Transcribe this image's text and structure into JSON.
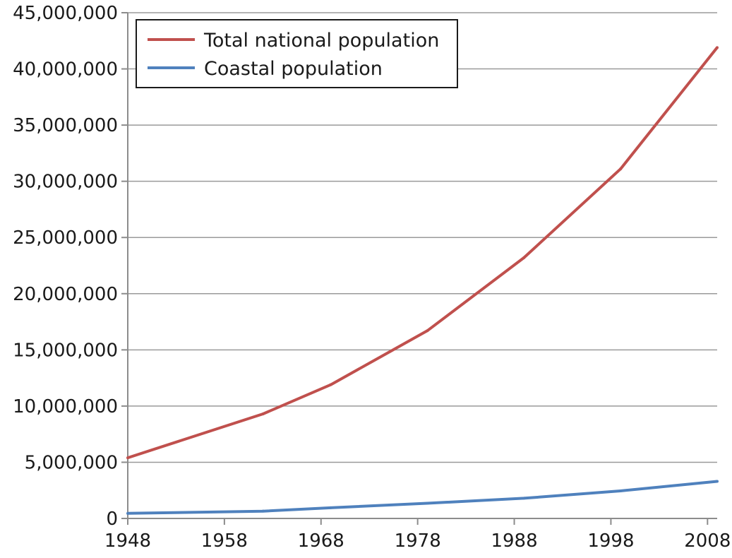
{
  "chart_data": {
    "type": "line",
    "title": "",
    "xlabel": "",
    "ylabel": "",
    "xlim": [
      1948,
      2009
    ],
    "ylim": [
      0,
      45000000
    ],
    "grid": true,
    "legend_position": "top-left",
    "x_ticks": [
      {
        "value": 1948,
        "label": "1948"
      },
      {
        "value": 1958,
        "label": "1958"
      },
      {
        "value": 1968,
        "label": "1968"
      },
      {
        "value": 1978,
        "label": "1978"
      },
      {
        "value": 1988,
        "label": "1988"
      },
      {
        "value": 1998,
        "label": "1998"
      },
      {
        "value": 2008,
        "label": "2008"
      }
    ],
    "y_ticks": [
      {
        "value": 0,
        "label": "0"
      },
      {
        "value": 5000000,
        "label": "5,000,000"
      },
      {
        "value": 10000000,
        "label": "10,000,000"
      },
      {
        "value": 15000000,
        "label": "15,000,000"
      },
      {
        "value": 20000000,
        "label": "20,000,000"
      },
      {
        "value": 25000000,
        "label": "25,000,000"
      },
      {
        "value": 30000000,
        "label": "30,000,000"
      },
      {
        "value": 35000000,
        "label": "35,000,000"
      },
      {
        "value": 40000000,
        "label": "40,000,000"
      },
      {
        "value": 45000000,
        "label": "45,000,000"
      }
    ],
    "series": [
      {
        "name": "Total national population",
        "color": "#c0504d",
        "points": [
          {
            "x": 1948,
            "y": 5400000
          },
          {
            "x": 1962,
            "y": 9300000
          },
          {
            "x": 1969,
            "y": 11900000
          },
          {
            "x": 1979,
            "y": 16700000
          },
          {
            "x": 1989,
            "y": 23200000
          },
          {
            "x": 1999,
            "y": 31100000
          },
          {
            "x": 2009,
            "y": 41900000
          }
        ]
      },
      {
        "name": "Coastal population",
        "color": "#4f81bd",
        "points": [
          {
            "x": 1948,
            "y": 450000
          },
          {
            "x": 1962,
            "y": 650000
          },
          {
            "x": 1969,
            "y": 950000
          },
          {
            "x": 1979,
            "y": 1350000
          },
          {
            "x": 1989,
            "y": 1800000
          },
          {
            "x": 1999,
            "y": 2450000
          },
          {
            "x": 2009,
            "y": 3300000
          }
        ]
      }
    ]
  }
}
